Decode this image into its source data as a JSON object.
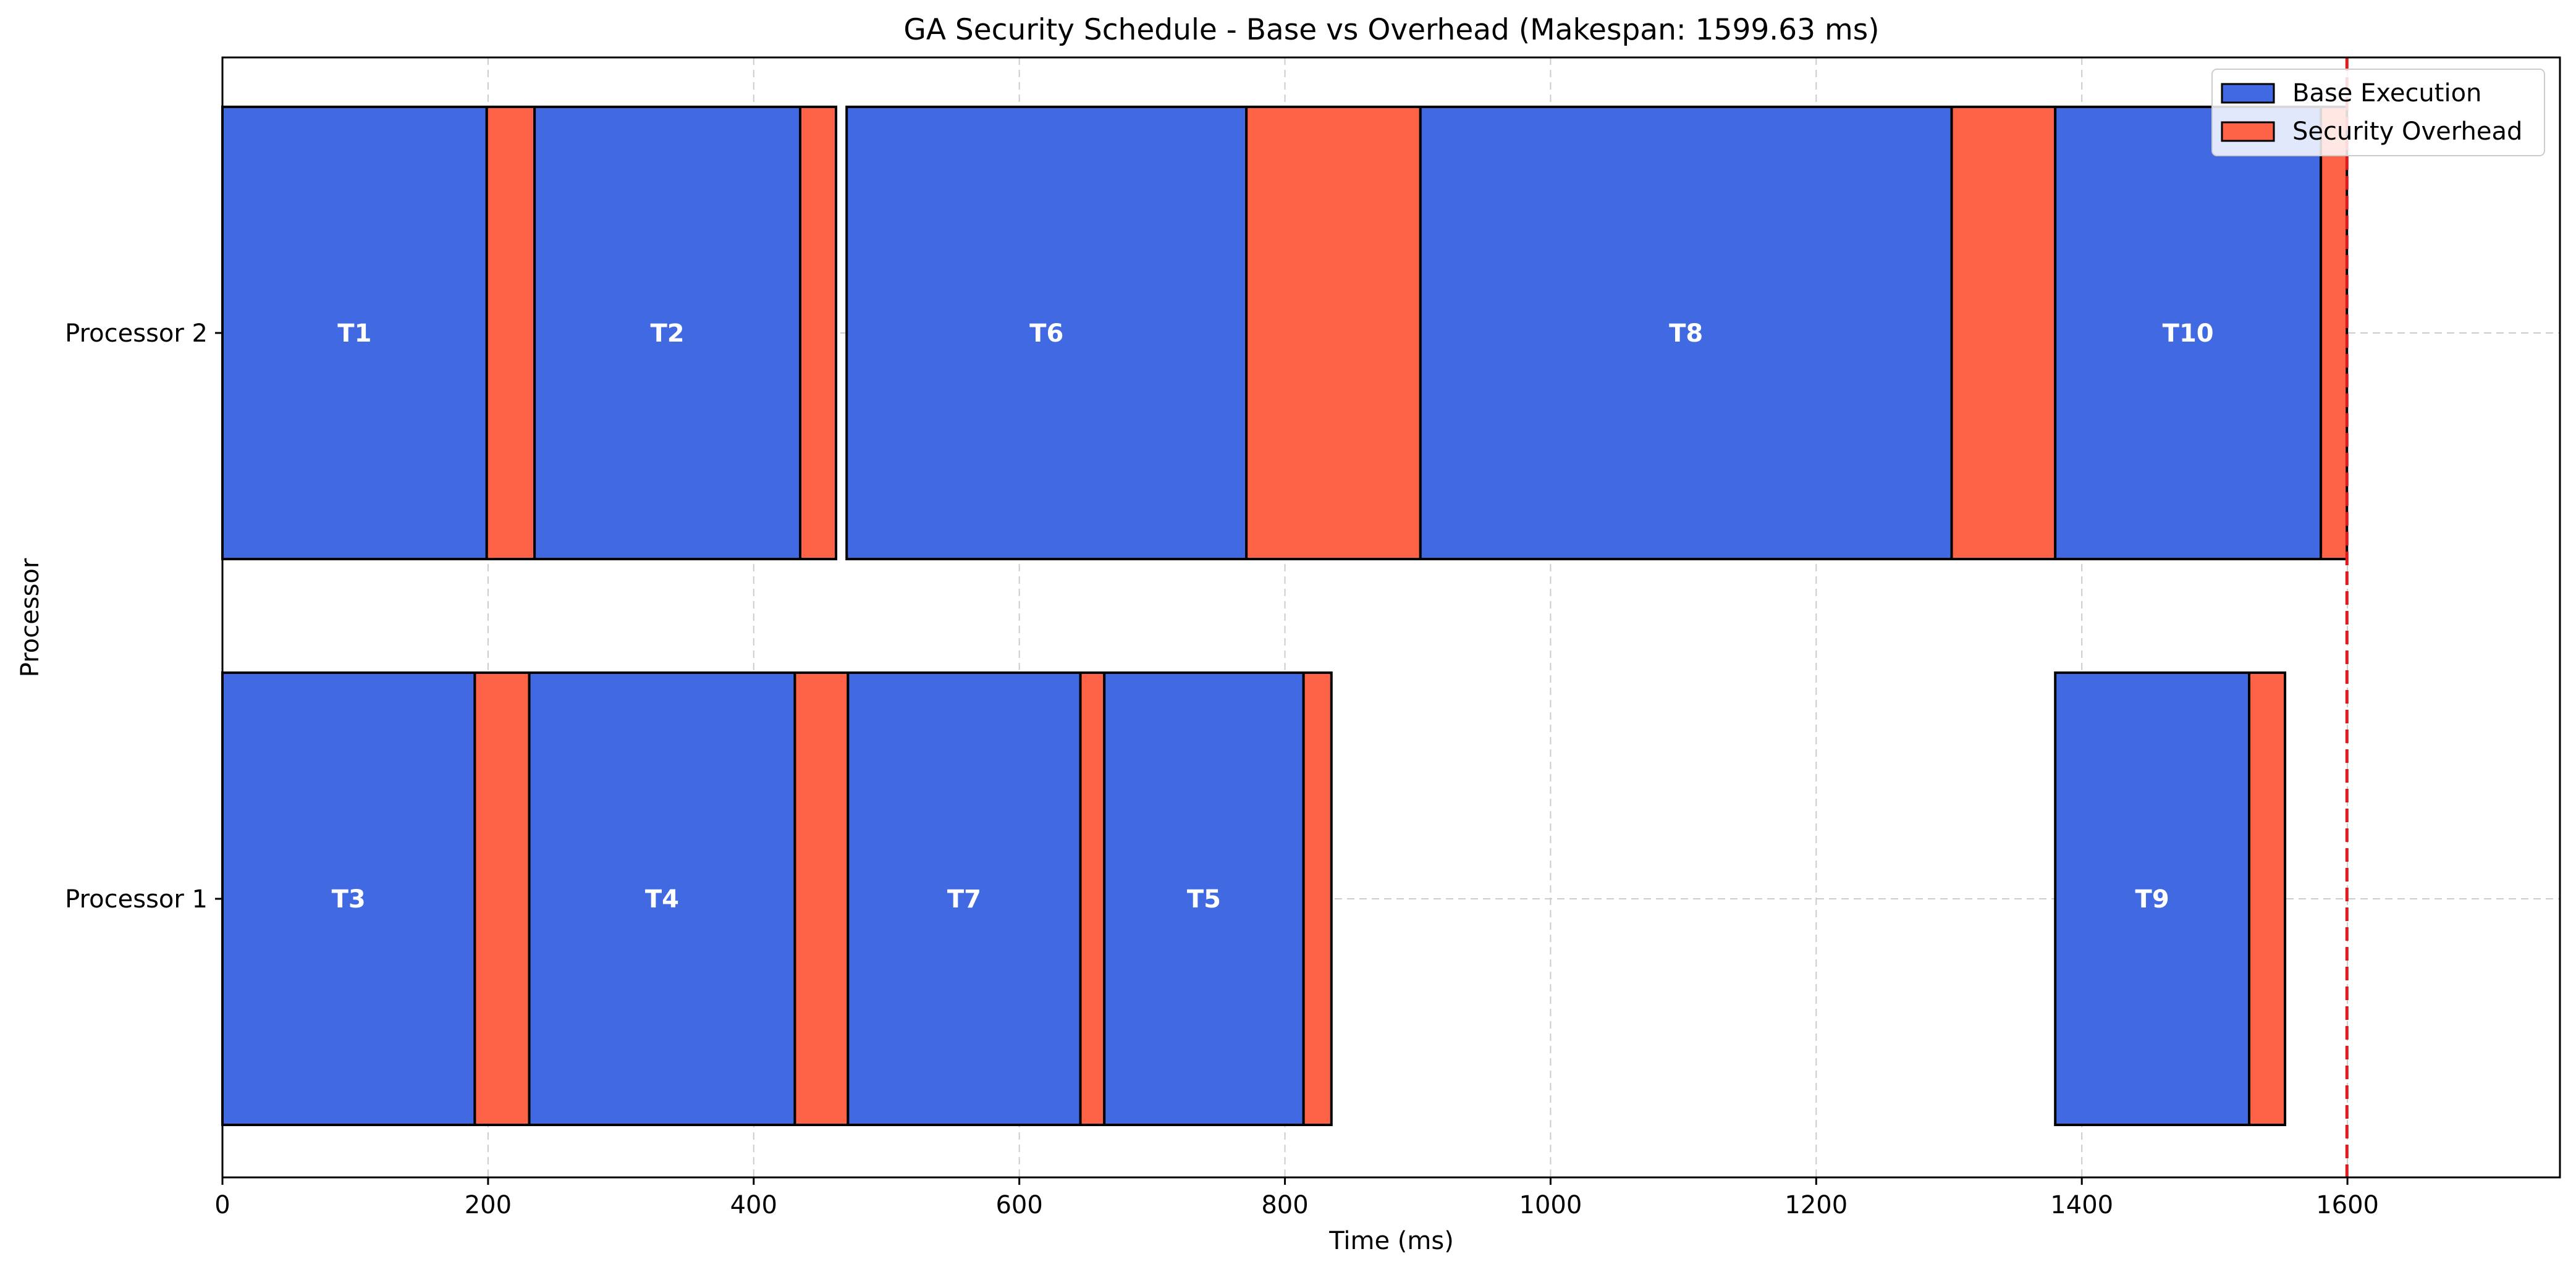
{
  "chart_data": {
    "type": "gantt",
    "title": "GA Security Schedule - Base vs Overhead (Makespan: 1599.63 ms)",
    "xlabel": "Time (ms)",
    "ylabel": "Processor",
    "xlim": [
      0,
      1760
    ],
    "x_ticks": [
      0,
      200,
      400,
      600,
      800,
      1000,
      1200,
      1400,
      1600
    ],
    "x_tick_labels": [
      "0",
      "200",
      "400",
      "600",
      "800",
      "1000",
      "1200",
      "1400",
      "1600"
    ],
    "processors": [
      "Processor 2",
      "Processor 1"
    ],
    "grid": true,
    "legend_position": "top-right",
    "makespan": 1599.63,
    "colors": {
      "base": "#4169E1",
      "overhead": "#FF6347",
      "makespan_line": "#E31A1C",
      "grid": "#cccccc"
    },
    "series": [
      {
        "name": "Base Execution",
        "color": "#4169E1"
      },
      {
        "name": "Security Overhead",
        "color": "#FF6347"
      }
    ],
    "tasks": [
      {
        "task": "T1",
        "processor": "Processor 2",
        "start": 0,
        "base": 199,
        "overhead": 36
      },
      {
        "task": "T2",
        "processor": "Processor 2",
        "start": 235,
        "base": 200,
        "overhead": 27
      },
      {
        "task": "T6",
        "processor": "Processor 2",
        "start": 470,
        "base": 301,
        "overhead": 131
      },
      {
        "task": "T8",
        "processor": "Processor 2",
        "start": 902,
        "base": 400,
        "overhead": 78
      },
      {
        "task": "T10",
        "processor": "Processor 2",
        "start": 1380,
        "base": 200,
        "overhead": 19.63
      },
      {
        "task": "T3",
        "processor": "Processor 1",
        "start": 0,
        "base": 190,
        "overhead": 41
      },
      {
        "task": "T4",
        "processor": "Processor 1",
        "start": 231,
        "base": 200,
        "overhead": 40
      },
      {
        "task": "T7",
        "processor": "Processor 1",
        "start": 471,
        "base": 175,
        "overhead": 18
      },
      {
        "task": "T5",
        "processor": "Processor 1",
        "start": 664,
        "base": 150,
        "overhead": 21
      },
      {
        "task": "T9",
        "processor": "Processor 1",
        "start": 1380,
        "base": 146,
        "overhead": 27
      }
    ]
  }
}
